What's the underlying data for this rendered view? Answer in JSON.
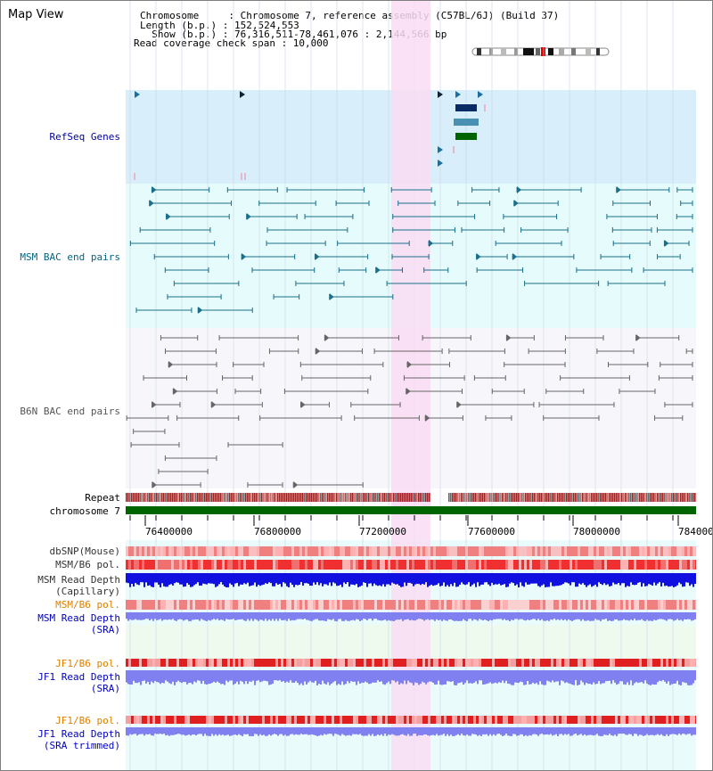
{
  "header": {
    "view_title": "Map View",
    "chromosome_line": "Chromosome     : Chromosome 7, reference assembly (C57BL/6J) (Build 37)",
    "length_line": "Length (b.p.) : 152,524,553",
    "show_line": "  Show (b.p.) : 76,316,511-78,461,076 : 2,144,566 bp",
    "coverage_line": "Read coverage check span : 10,000"
  },
  "tracks": {
    "refseq": "RefSeq Genes",
    "msm_bac": "MSM BAC end pairs",
    "b6n_bac": "B6N BAC end pairs",
    "repeat": "Repeat",
    "chromosome": "chromosome 7",
    "dbsnp": "dbSNP(Mouse)",
    "msm_pol": "MSM/B6 pol.",
    "msm_depth_cap_1": "MSM Read Depth",
    "msm_depth_cap_2": "(Capillary)",
    "msm_pol_2": "MSM/B6 pol.",
    "msm_depth_sra_1": "MSM Read Depth",
    "msm_depth_sra_2": "(SRA)",
    "jf1_pol": "JF1/B6 pol.",
    "jf1_depth_1": "JF1 Read Depth",
    "jf1_depth_2": "(SRA)",
    "jf1_pol_2": "JF1/B6 pol.",
    "jf1_trim_1": "JF1 Read Depth",
    "jf1_trim_2": "(SRA trimmed)"
  },
  "axis": {
    "ticks": [
      "76400000",
      "76800000",
      "77200000",
      "77600000",
      "78000000",
      "784000"
    ]
  },
  "colors": {
    "refseq_bg": "#d8eefa",
    "msm_bg": "#e6fbfb",
    "b6n_bg": "#f7f7fb",
    "highlight": "#f9dcf3",
    "chromosome_bar": "#006400",
    "label_blue": "#0000a0",
    "label_teal": "#006680",
    "label_orange": "#e08000",
    "depth_blue": "#1010e0",
    "depth_light": "#8080f0"
  }
}
